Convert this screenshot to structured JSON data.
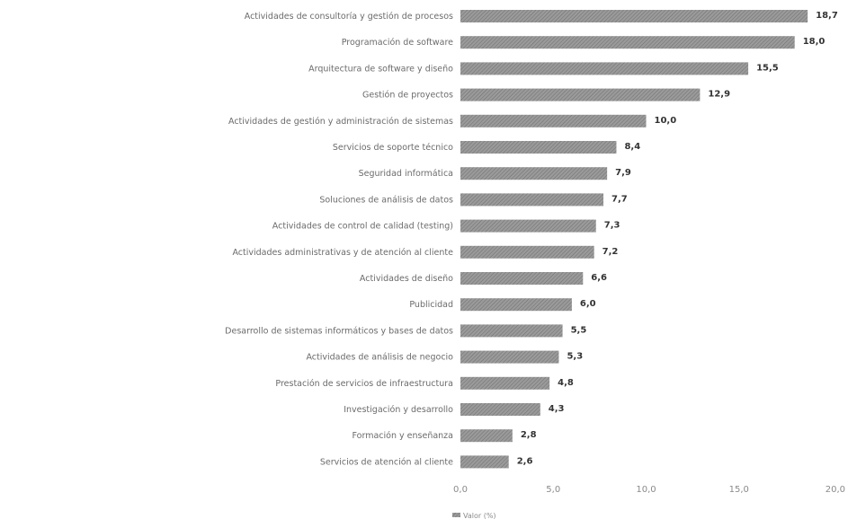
{
  "chart_data": {
    "type": "bar",
    "orientation": "horizontal",
    "categories": [
      "Actividades de consultoría y gestión de procesos",
      "Programación de software",
      "Arquitectura de software y diseño",
      "Gestión de proyectos",
      "Actividades de gestión y administración de sistemas",
      "Servicios de soporte técnico",
      "Seguridad informática",
      "Soluciones de análisis de datos",
      "Actividades de control de calidad (testing)",
      "Actividades administrativas y de atención al cliente",
      "Actividades de diseño",
      "Publicidad",
      "Desarrollo de sistemas informáticos y bases de datos",
      "Actividades de análisis de negocio",
      "Prestación de servicios de infraestructura",
      "Investigación y desarrollo",
      "Formación y enseñanza",
      "Servicios de atención al cliente"
    ],
    "values": [
      18.7,
      18.0,
      15.5,
      12.9,
      10.0,
      8.4,
      7.9,
      7.7,
      7.3,
      7.2,
      6.6,
      6.0,
      5.5,
      5.3,
      4.8,
      4.3,
      2.8,
      2.6
    ],
    "value_labels": [
      "18,7",
      "18,0",
      "15,5",
      "12,9",
      "10,0",
      "8,4",
      "7,9",
      "7,7",
      "7,3",
      "7,2",
      "6,6",
      "6,0",
      "5,5",
      "5,3",
      "4,8",
      "4,3",
      "2,8",
      "2,6"
    ],
    "xlim": [
      0,
      20
    ],
    "ticks": [
      0,
      5,
      10,
      15,
      20
    ],
    "tick_labels": [
      "0,0",
      "5,0",
      "10,0",
      "15,0",
      "20,0"
    ],
    "grid": false,
    "legend": {
      "placement": "bottom",
      "label": "Valor (%)"
    },
    "bar_color": "#8c8c8c"
  }
}
